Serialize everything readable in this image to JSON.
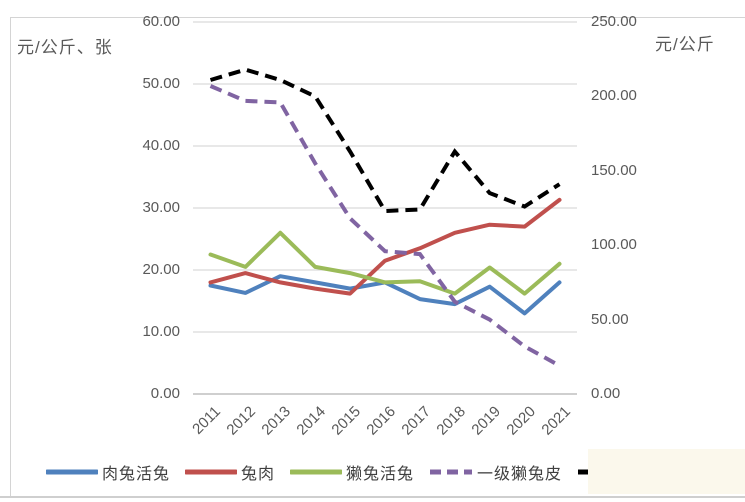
{
  "axes": {
    "left_title": "元/公斤、张",
    "right_title": "元/公斤",
    "left_ticks": [
      "60.00",
      "50.00",
      "40.00",
      "30.00",
      "20.00",
      "10.00",
      "0.00"
    ],
    "right_ticks": [
      "250.00",
      "200.00",
      "150.00",
      "100.00",
      "50.00",
      "0.00"
    ]
  },
  "chart_data": {
    "type": "line",
    "title": "",
    "left_axis_label": "元/公斤、张",
    "right_axis_label": "元/公斤",
    "categories": [
      "2011",
      "2012",
      "2013",
      "2014",
      "2015",
      "2016",
      "2017",
      "2018",
      "2019",
      "2020",
      "2021"
    ],
    "ylim_left": [
      0,
      60
    ],
    "ylim_right": [
      0,
      250
    ],
    "grid": true,
    "legend_position": "bottom",
    "series": [
      {
        "name": "肉兔活兔",
        "axis": "left",
        "color": "#4F81BD",
        "style": "solid",
        "values": [
          17.5,
          16.3,
          19.0,
          18.0,
          17.0,
          18.0,
          15.3,
          14.5,
          17.3,
          13.0,
          18.0
        ]
      },
      {
        "name": "兔肉",
        "axis": "left",
        "color": "#C0504D",
        "style": "solid",
        "values": [
          18.0,
          19.5,
          18.0,
          17.0,
          16.2,
          21.5,
          23.5,
          26.0,
          27.3,
          27.0,
          31.3
        ]
      },
      {
        "name": "獭兔活兔",
        "axis": "left",
        "color": "#9BBB59",
        "style": "solid",
        "values": [
          22.5,
          20.5,
          26.0,
          20.5,
          19.5,
          18.0,
          18.2,
          16.2,
          20.4,
          16.2,
          21.0
        ]
      },
      {
        "name": "一级獭兔皮",
        "axis": "right",
        "color": "#8064A2",
        "style": "dashed",
        "values": [
          207,
          197,
          196,
          155,
          118,
          96,
          94,
          62,
          50,
          32,
          19
        ]
      },
      {
        "name": "",
        "axis": "right",
        "color": "#000000",
        "style": "dashed",
        "values": [
          211,
          218,
          211,
          200,
          163,
          123,
          124,
          163,
          135,
          126,
          141
        ]
      }
    ]
  },
  "colors": {
    "gridline": "#d9d9d9",
    "axis_line": "#bfbfbf",
    "tick_text": "#595959",
    "overlay_box": "#fbf8ec"
  }
}
